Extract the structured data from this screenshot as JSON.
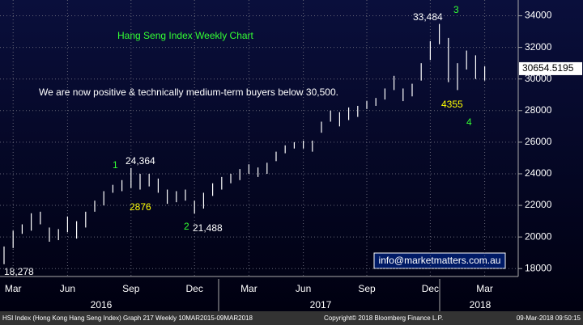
{
  "chart_data": {
    "type": "range-bar",
    "title": "Hang Seng Index Weekly Chart",
    "categories": [
      null,
      "Mar",
      null,
      null,
      null,
      null,
      null,
      "Jun",
      null,
      null,
      null,
      null,
      null,
      null,
      "Sep",
      null,
      null,
      null,
      null,
      null,
      null,
      "Dec",
      null,
      null,
      null,
      null,
      null,
      "Mar",
      null,
      null,
      null,
      null,
      null,
      "Jun",
      null,
      null,
      null,
      null,
      null,
      null,
      "Sep",
      null,
      null,
      null,
      null,
      null,
      null,
      "Dec",
      null,
      null,
      null,
      null,
      null,
      "Mar"
    ],
    "series": [
      {
        "name": "high",
        "color": "#ffffff",
        "values": [
          19400,
          20400,
          20800,
          21500,
          21600,
          20600,
          20500,
          21300,
          21000,
          21600,
          22300,
          22900,
          23300,
          23600,
          24364,
          24000,
          24000,
          23700,
          23000,
          22900,
          23000,
          22300,
          22800,
          23400,
          23800,
          24000,
          24300,
          24600,
          24400,
          24700,
          25400,
          25800,
          26000,
          26100,
          26100,
          27300,
          28000,
          27900,
          28200,
          28300,
          28600,
          28800,
          29400,
          30200,
          29400,
          29700,
          31000,
          32400,
          33484,
          32600,
          31000,
          31800,
          31500,
          30800
        ]
      },
      {
        "name": "low",
        "color": "#ffffff",
        "values": [
          18278,
          19300,
          20200,
          20400,
          20800,
          19700,
          19800,
          20300,
          19900,
          20600,
          21600,
          22000,
          22800,
          22900,
          23100,
          23000,
          23200,
          22800,
          22100,
          22200,
          22300,
          21488,
          21800,
          22600,
          23000,
          23400,
          23600,
          24000,
          23800,
          24000,
          24800,
          25300,
          25600,
          25600,
          25400,
          26600,
          27300,
          27000,
          27400,
          27600,
          28100,
          28300,
          28700,
          29300,
          28600,
          28900,
          29900,
          31200,
          32200,
          29800,
          29300,
          30600,
          30000,
          29900
        ]
      }
    ],
    "years": [
      "2016",
      "2017",
      "2018"
    ],
    "ylim": [
      17500,
      35000
    ],
    "yticks": [
      18000,
      20000,
      22000,
      24000,
      26000,
      28000,
      30000,
      32000,
      34000
    ],
    "grid": true,
    "last_price": {
      "value": 30654.5195,
      "label": "30654.5195"
    },
    "annotations": [
      "We are now positive & technically medium-term buyers below 30,500.",
      "1",
      "24,364",
      "2876",
      "2",
      "21,488",
      "33,484",
      "3",
      "4355",
      "4",
      "18,278"
    ],
    "contact": "info@marketmatters.com.au",
    "footer": {
      "left": "HSI Index (Hong Kong Hang Seng Index) Graph 217  Weekly 10MAR2015-09MAR2018",
      "center": "Copyright© 2018 Bloomberg Finance L.P.",
      "right": "09-Mar-2018 09:50:15"
    }
  }
}
